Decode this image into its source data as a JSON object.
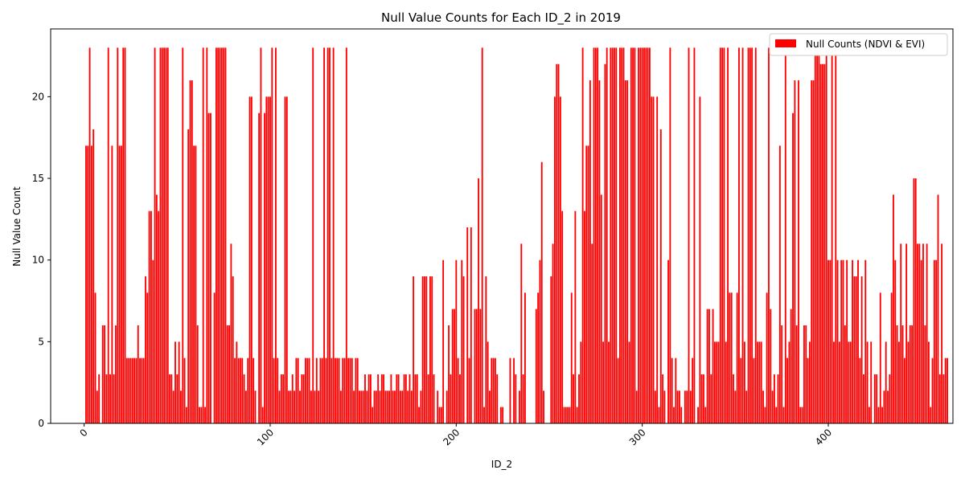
{
  "chart_data": {
    "type": "bar",
    "title": "Null Value Counts for Each ID_2 in 2019",
    "xlabel": "ID_2",
    "ylabel": "Null Value Count",
    "xlim": [
      -18,
      467
    ],
    "ylim": [
      0,
      24.15
    ],
    "x_start": 1,
    "xticks": [
      0,
      100,
      200,
      300,
      400
    ],
    "yticks": [
      0,
      5,
      10,
      15,
      20
    ],
    "grid": false,
    "legend_position": "top-right",
    "bar_color": "#ff0000",
    "series": [
      {
        "name": "Null Counts (NDVI & EVI)",
        "values": [
          17,
          17,
          23,
          17,
          18,
          8,
          2,
          3,
          0,
          6,
          6,
          3,
          23,
          3,
          17,
          3,
          6,
          23,
          17,
          17,
          23,
          23,
          4,
          4,
          4,
          4,
          4,
          4,
          6,
          4,
          4,
          4,
          9,
          8,
          13,
          13,
          10,
          23,
          14,
          13,
          23,
          23,
          23,
          23,
          23,
          3,
          3,
          2,
          5,
          3,
          5,
          2,
          23,
          4,
          1,
          18,
          21,
          21,
          17,
          17,
          6,
          1,
          1,
          23,
          1,
          23,
          19,
          19,
          0,
          8,
          23,
          23,
          23,
          23,
          23,
          23,
          6,
          6,
          11,
          9,
          4,
          5,
          4,
          4,
          4,
          3,
          2,
          4,
          20,
          20,
          4,
          2,
          0,
          19,
          23,
          1,
          19,
          20,
          20,
          20,
          23,
          4,
          23,
          4,
          2,
          3,
          3,
          20,
          20,
          2,
          2,
          3,
          2,
          4,
          4,
          2,
          3,
          3,
          4,
          4,
          4,
          2,
          23,
          2,
          4,
          2,
          4,
          4,
          23,
          4,
          23,
          23,
          4,
          23,
          4,
          4,
          4,
          2,
          4,
          4,
          23,
          4,
          4,
          4,
          2,
          4,
          4,
          2,
          2,
          2,
          3,
          2,
          3,
          3,
          1,
          2,
          2,
          3,
          2,
          3,
          3,
          2,
          2,
          2,
          3,
          2,
          2,
          3,
          3,
          2,
          2,
          3,
          3,
          2,
          3,
          2,
          9,
          3,
          3,
          1,
          2,
          9,
          9,
          9,
          3,
          9,
          9,
          3,
          0,
          2,
          1,
          1,
          10,
          0,
          2,
          6,
          3,
          7,
          7,
          10,
          4,
          3,
          10,
          9,
          0,
          12,
          4,
          12,
          0,
          7,
          7,
          15,
          7,
          23,
          1,
          9,
          5,
          2,
          4,
          4,
          4,
          3,
          0,
          1,
          1,
          0,
          0,
          0,
          4,
          0,
          4,
          3,
          0,
          2,
          11,
          3,
          8,
          0,
          0,
          0,
          0,
          0,
          7,
          8,
          10,
          16,
          2,
          0,
          0,
          0,
          9,
          11,
          20,
          22,
          22,
          20,
          13,
          1,
          1,
          1,
          1,
          8,
          3,
          13,
          1,
          3,
          5,
          23,
          13,
          17,
          17,
          21,
          11,
          23,
          23,
          23,
          21,
          14,
          5,
          22,
          23,
          5,
          23,
          23,
          23,
          23,
          4,
          23,
          23,
          23,
          21,
          21,
          5,
          23,
          23,
          23,
          2,
          23,
          23,
          23,
          23,
          23,
          23,
          23,
          20,
          20,
          2,
          20,
          1,
          18,
          3,
          2,
          0,
          10,
          23,
          4,
          1,
          4,
          2,
          2,
          1,
          0,
          2,
          2,
          23,
          2,
          4,
          23,
          0,
          1,
          20,
          3,
          3,
          1,
          7,
          7,
          3,
          7,
          5,
          5,
          5,
          23,
          23,
          23,
          5,
          23,
          8,
          8,
          3,
          2,
          8,
          23,
          4,
          23,
          5,
          2,
          23,
          23,
          23,
          4,
          23,
          5,
          5,
          5,
          2,
          1,
          8,
          23,
          7,
          2,
          3,
          1,
          3,
          17,
          6,
          1,
          23,
          4,
          5,
          7,
          19,
          21,
          6,
          21,
          1,
          1,
          6,
          6,
          4,
          5,
          21,
          21,
          23,
          23,
          23,
          22,
          22,
          22,
          23,
          10,
          10,
          23,
          5,
          23,
          10,
          5,
          10,
          10,
          6,
          10,
          5,
          5,
          10,
          9,
          9,
          10,
          4,
          9,
          3,
          10,
          5,
          1,
          5,
          0,
          3,
          3,
          1,
          8,
          1,
          2,
          5,
          2,
          3,
          8,
          14,
          10,
          6,
          5,
          11,
          6,
          4,
          11,
          5,
          6,
          6,
          15,
          15,
          11,
          11,
          10,
          11,
          6,
          11,
          5,
          1,
          4,
          10,
          10,
          14,
          3,
          11,
          3,
          4,
          4
        ]
      }
    ]
  }
}
